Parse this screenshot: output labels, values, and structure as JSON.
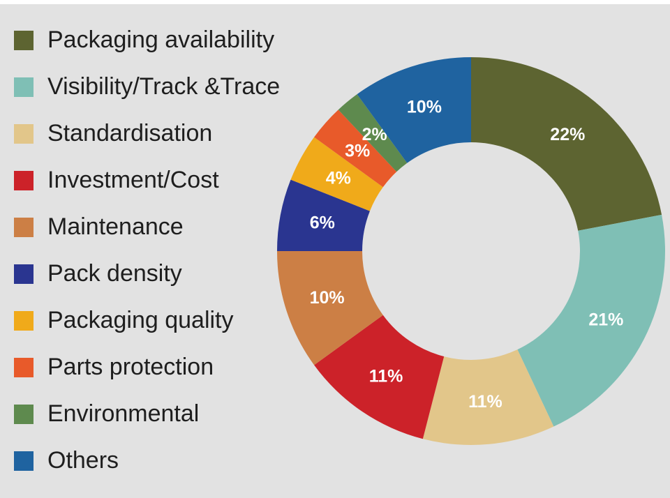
{
  "chart_data": {
    "type": "pie",
    "variant": "donut",
    "legend_position": "left",
    "start_angle_deg": 0,
    "direction": "clockwise",
    "slices": [
      {
        "name": "Packaging availability",
        "value": 22,
        "label": "22%",
        "color": "#5d6431"
      },
      {
        "name": "Visibility/Track &Trace",
        "value": 21,
        "label": "21%",
        "color": "#7fbfb5"
      },
      {
        "name": "Standardisation",
        "value": 11,
        "label": "11%",
        "color": "#e2c68a"
      },
      {
        "name": "Investment/Cost",
        "value": 11,
        "label": "11%",
        "color": "#cc2229"
      },
      {
        "name": "Maintenance",
        "value": 10,
        "label": "10%",
        "color": "#cc7f45"
      },
      {
        "name": "Pack density",
        "value": 6,
        "label": "6%",
        "color": "#2a3590"
      },
      {
        "name": "Packaging quality",
        "value": 4,
        "label": "4%",
        "color": "#f0aa1a"
      },
      {
        "name": "Parts protection",
        "value": 3,
        "label": "3%",
        "color": "#e85a2a"
      },
      {
        "name": "Environmental",
        "value": 2,
        "label": "2%",
        "color": "#5e8a4e"
      },
      {
        "name": "Others",
        "value": 10,
        "label": "10%",
        "color": "#1f63a0"
      }
    ]
  }
}
